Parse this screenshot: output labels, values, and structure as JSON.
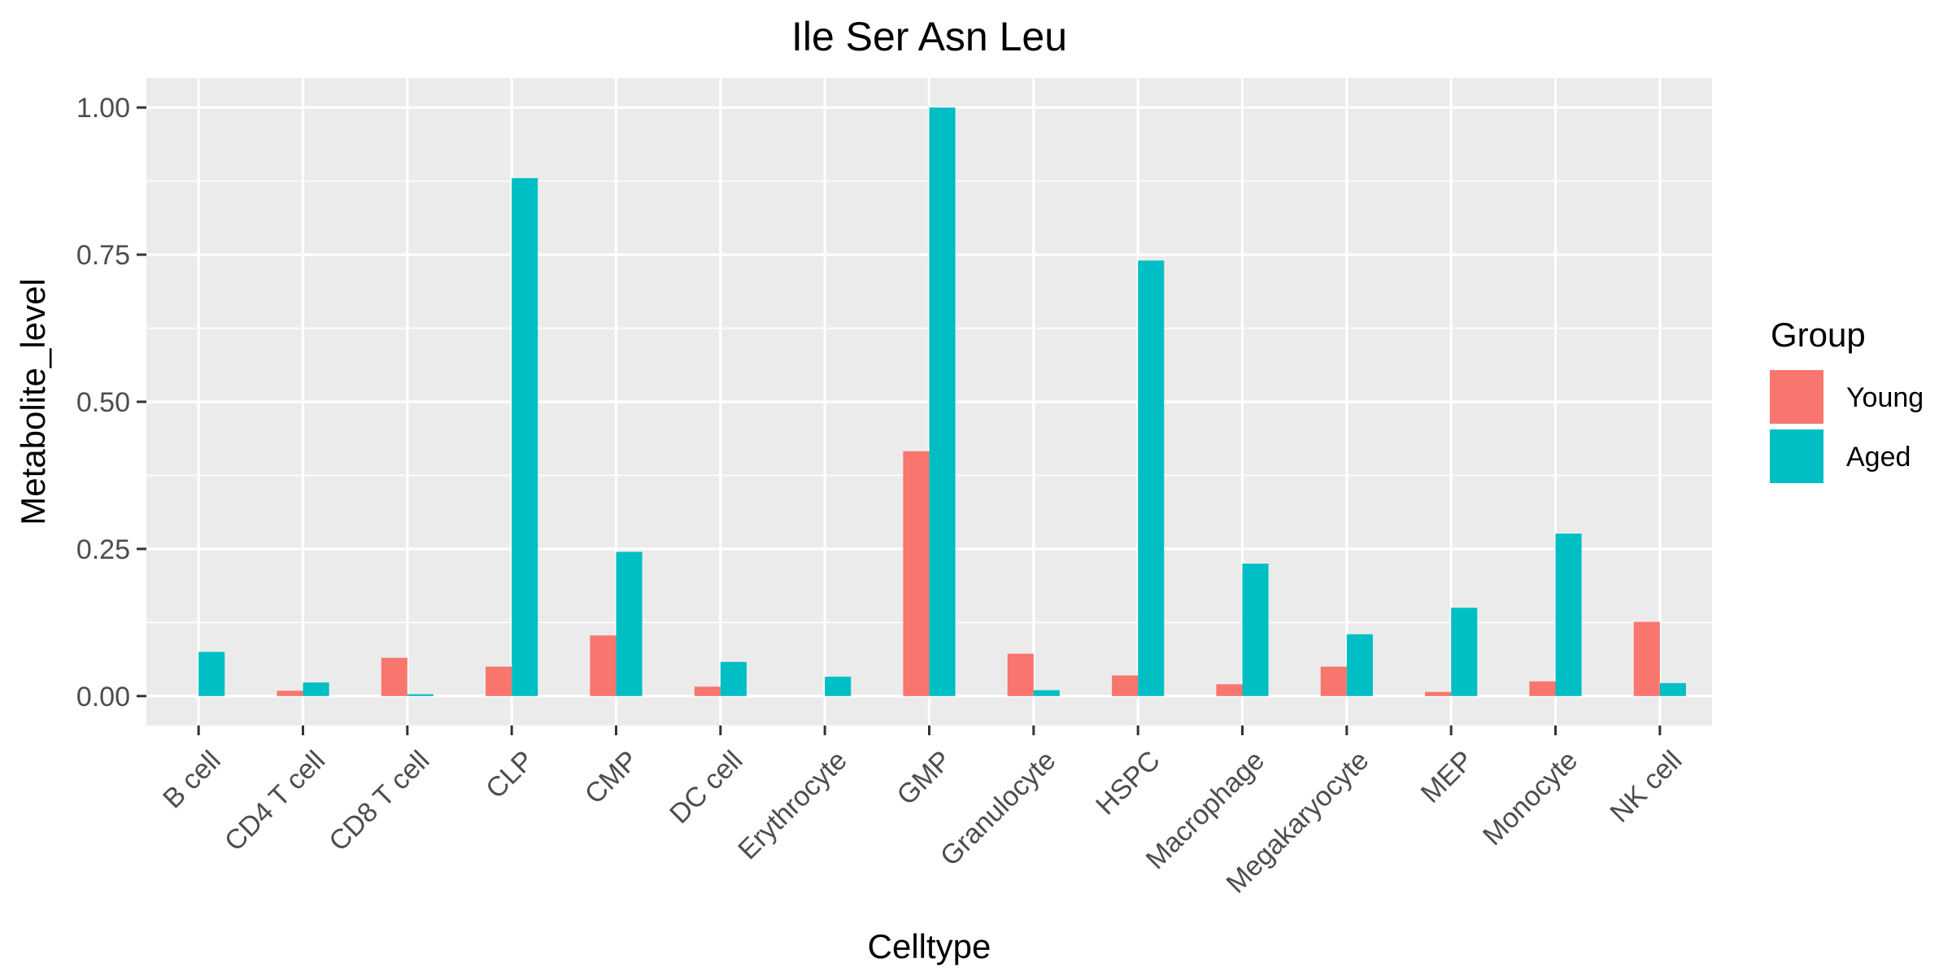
{
  "chart_data": {
    "type": "bar",
    "title": "Ile Ser Asn Leu",
    "xlabel": "Celltype",
    "ylabel": "Metabolite_level",
    "categories": [
      "B cell",
      "CD4 T cell",
      "CD8 T cell",
      "CLP",
      "CMP",
      "DC cell",
      "Erythrocyte",
      "GMP",
      "Granulocyte",
      "HSPC",
      "Macrophage",
      "Megakaryocyte",
      "MEP",
      "Monocyte",
      "NK cell"
    ],
    "series": [
      {
        "name": "Young",
        "color": "#F8766D",
        "values": [
          0.0,
          0.009,
          0.065,
          0.05,
          0.103,
          0.016,
          0.0,
          0.416,
          0.072,
          0.035,
          0.02,
          0.05,
          0.007,
          0.025,
          0.126
        ]
      },
      {
        "name": "Aged",
        "color": "#00BFC4",
        "values": [
          0.075,
          0.023,
          0.003,
          0.88,
          0.245,
          0.058,
          0.033,
          1.0,
          0.01,
          0.74,
          0.225,
          0.105,
          0.15,
          0.276,
          0.022
        ]
      }
    ],
    "ylim": [
      -0.05,
      1.05
    ],
    "yticks": [
      0.0,
      0.25,
      0.5,
      0.75,
      1.0
    ],
    "ytick_labels": [
      "0.00",
      "0.25",
      "0.50",
      "0.75",
      "1.00"
    ],
    "legend": {
      "title": "Group",
      "placement": "right"
    },
    "grid": true,
    "panel_color": "#EBEBEB",
    "grid_color": "#FFFFFF"
  }
}
